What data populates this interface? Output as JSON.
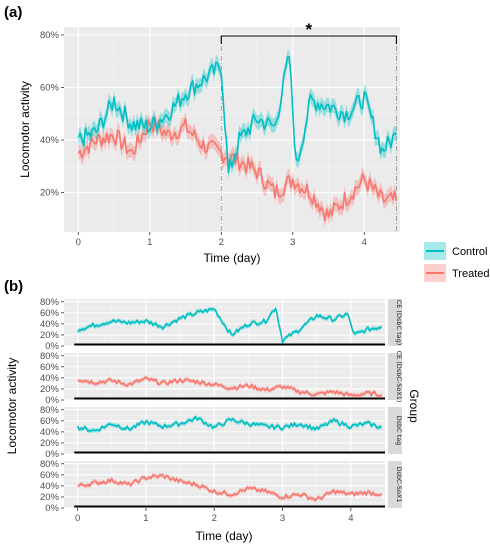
{
  "chart_data": [
    {
      "panel": "(a)",
      "type": "line",
      "xlabel": "Time (day)",
      "ylabel": "Locomotor activity",
      "xlim": [
        -0.2,
        4.5
      ],
      "ylim": [
        0.05,
        0.83
      ],
      "x_ticks": [
        0,
        1,
        2,
        3,
        4
      ],
      "y_ticks": [
        0.2,
        0.4,
        0.6,
        0.8
      ],
      "y_tick_labels": [
        "20%",
        "40%",
        "60%",
        "80%"
      ],
      "grid": true,
      "legend": "right",
      "annotation": "*",
      "bracket_x": [
        2.0,
        4.45
      ],
      "series": [
        {
          "name": "Control",
          "color": "#00BFC4",
          "x": [
            0,
            0.25,
            0.5,
            0.75,
            1,
            1.25,
            1.5,
            1.75,
            2,
            2.1,
            2.25,
            2.5,
            2.75,
            2.95,
            3.05,
            3.25,
            3.5,
            3.75,
            4,
            4.25,
            4.45
          ],
          "y": [
            0.4,
            0.43,
            0.55,
            0.46,
            0.45,
            0.5,
            0.58,
            0.63,
            0.68,
            0.27,
            0.4,
            0.48,
            0.45,
            0.72,
            0.3,
            0.55,
            0.53,
            0.5,
            0.56,
            0.36,
            0.42
          ]
        },
        {
          "name": "Treated",
          "color": "#F8766D",
          "x": [
            0,
            0.25,
            0.5,
            0.75,
            1,
            1.25,
            1.5,
            1.75,
            2,
            2.25,
            2.5,
            2.75,
            3,
            3.25,
            3.5,
            3.75,
            4,
            4.25,
            4.45
          ],
          "y": [
            0.35,
            0.4,
            0.42,
            0.35,
            0.47,
            0.42,
            0.45,
            0.38,
            0.35,
            0.32,
            0.28,
            0.2,
            0.25,
            0.2,
            0.11,
            0.18,
            0.25,
            0.17,
            0.17
          ]
        }
      ]
    },
    {
      "panel": "(b)",
      "type": "line",
      "xlabel": "Time (day)",
      "ylabel": "Locomotor activity",
      "facet_label": "Group",
      "xlim": [
        -0.2,
        4.5
      ],
      "ylim": [
        0,
        0.85
      ],
      "x_ticks": [
        0,
        1,
        2,
        3,
        4
      ],
      "y_ticks": [
        0,
        0.2,
        0.4,
        0.6,
        0.8
      ],
      "y_tick_labels": [
        "0%",
        "20%",
        "40%",
        "60%",
        "80%"
      ],
      "grid": true,
      "facets": [
        {
          "strip": "CE (DsbC tag)",
          "color": "#00BFC4",
          "x": [
            0,
            0.25,
            0.5,
            0.75,
            1,
            1.25,
            1.5,
            1.75,
            2,
            2.25,
            2.5,
            2.75,
            2.9,
            3.0,
            3.25,
            3.5,
            3.75,
            3.95,
            4.05,
            4.25,
            4.45
          ],
          "y": [
            0.3,
            0.38,
            0.45,
            0.42,
            0.45,
            0.35,
            0.5,
            0.6,
            0.67,
            0.2,
            0.4,
            0.45,
            0.7,
            0.1,
            0.3,
            0.55,
            0.48,
            0.58,
            0.2,
            0.3,
            0.35
          ]
        },
        {
          "strip": "CE (DsbC-SoX1)",
          "color": "#F8766D",
          "x": [
            0,
            0.25,
            0.5,
            0.75,
            1,
            1.25,
            1.5,
            1.75,
            2,
            2.25,
            2.5,
            2.75,
            3,
            3.25,
            3.5,
            3.75,
            4,
            4.25,
            4.45
          ],
          "y": [
            0.38,
            0.32,
            0.35,
            0.28,
            0.38,
            0.3,
            0.36,
            0.33,
            0.28,
            0.22,
            0.26,
            0.18,
            0.24,
            0.15,
            0.1,
            0.15,
            0.08,
            0.12,
            0.1
          ]
        },
        {
          "strip": "DsbC tag",
          "color": "#00BFC4",
          "x": [
            0,
            0.25,
            0.5,
            0.75,
            1,
            1.25,
            1.5,
            1.75,
            2,
            2.25,
            2.5,
            2.75,
            3,
            3.25,
            3.5,
            3.75,
            4,
            4.25,
            4.45
          ],
          "y": [
            0.48,
            0.42,
            0.55,
            0.45,
            0.58,
            0.5,
            0.55,
            0.65,
            0.48,
            0.62,
            0.55,
            0.5,
            0.48,
            0.55,
            0.45,
            0.6,
            0.5,
            0.55,
            0.48
          ]
        },
        {
          "strip": "DsbC-SoX1",
          "color": "#F8766D",
          "x": [
            0,
            0.25,
            0.5,
            0.75,
            1,
            1.25,
            1.5,
            1.75,
            2,
            2.25,
            2.5,
            2.75,
            3,
            3.25,
            3.5,
            3.75,
            4,
            4.25,
            4.45
          ],
          "y": [
            0.4,
            0.45,
            0.5,
            0.42,
            0.55,
            0.58,
            0.48,
            0.42,
            0.3,
            0.25,
            0.35,
            0.3,
            0.2,
            0.25,
            0.15,
            0.3,
            0.25,
            0.28,
            0.25
          ]
        }
      ]
    }
  ]
}
